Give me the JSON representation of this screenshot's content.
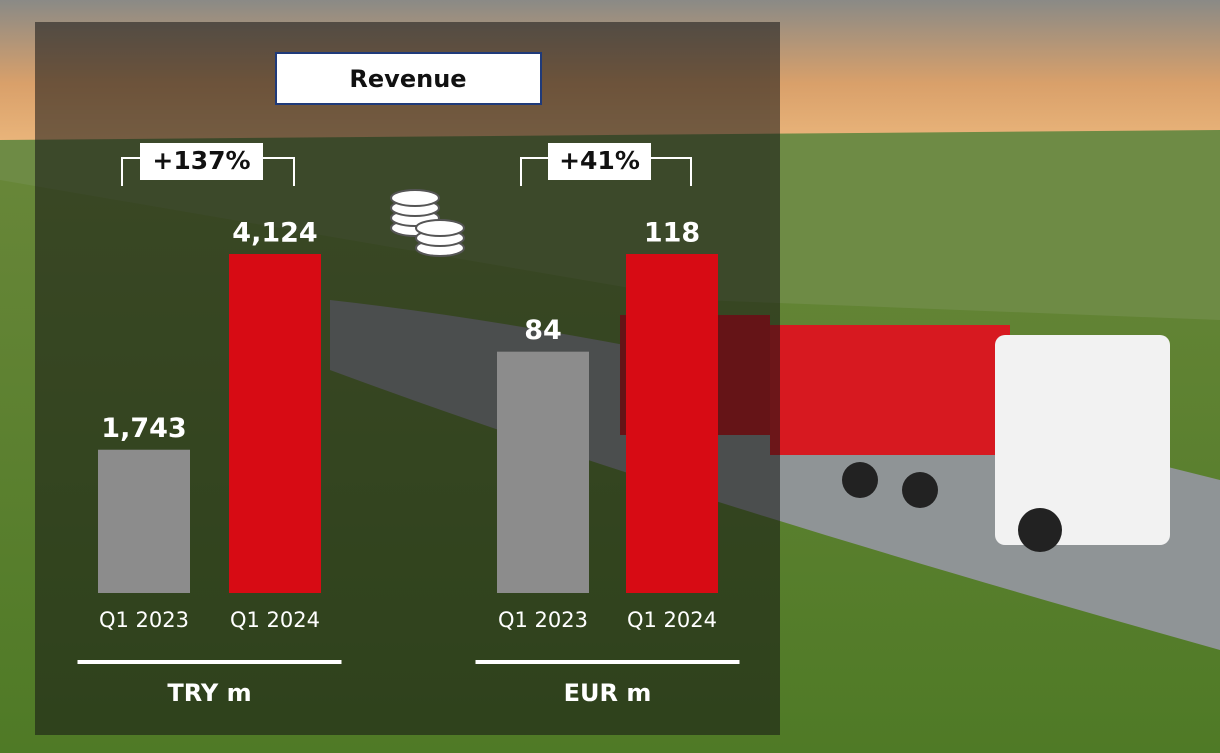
{
  "title": "Revenue",
  "chart_data": [
    {
      "type": "bar",
      "categories": [
        "Q1 2023",
        "Q1 2024"
      ],
      "values": [
        1743,
        4124
      ],
      "value_labels": [
        "1,743",
        "4,124"
      ],
      "colors": [
        "#8c8c8c",
        "#d70b14"
      ],
      "x_label": "TRY m",
      "annotation": "+137%"
    },
    {
      "type": "bar",
      "categories": [
        "Q1 2023",
        "Q1 2024"
      ],
      "values": [
        84,
        118
      ],
      "colors": [
        "#8c8c8c",
        "#d70b14"
      ],
      "x_label": "EUR m",
      "annotation": "+41%"
    }
  ]
}
